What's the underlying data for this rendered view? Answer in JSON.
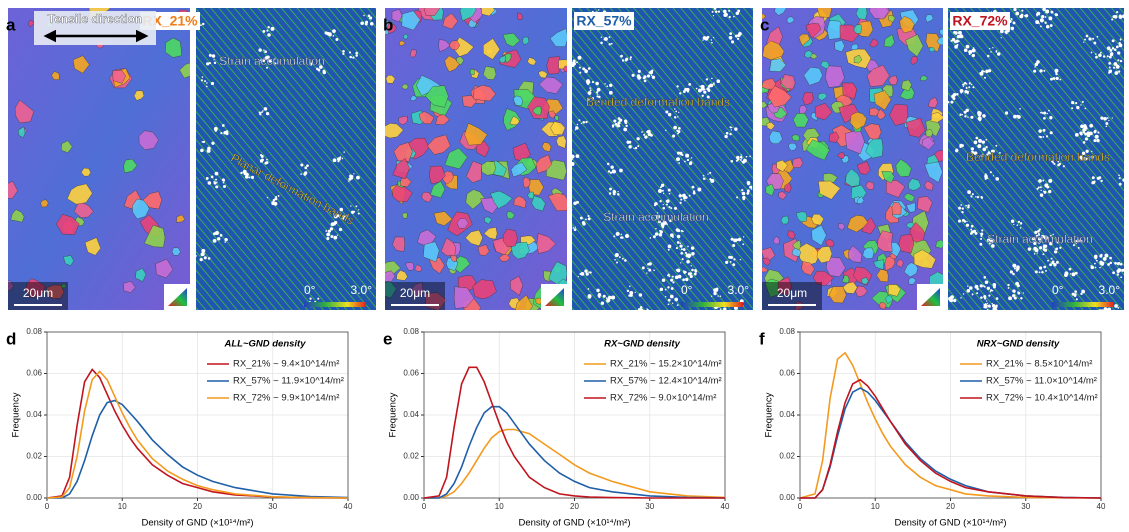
{
  "maps": [
    {
      "panel": "a",
      "label": "RX_21%",
      "label_color": "#f07d1a",
      "direction": "Tensile direction",
      "annotations": [
        "Strain accumulation",
        "Planar deformation bands"
      ],
      "scale_bar": "20μm",
      "colorbar_min": "0°",
      "colorbar_max": "3.0°"
    },
    {
      "panel": "b",
      "label": "RX_57%",
      "label_color": "#1f5fa8",
      "annotations": [
        "Bended deformation bands",
        "Strain accumulation"
      ],
      "scale_bar": "20μm",
      "colorbar_min": "0°",
      "colorbar_max": "3.0°"
    },
    {
      "panel": "c",
      "label": "RX_72%",
      "label_color": "#c0141e",
      "annotations": [
        "Bended deformation bands",
        "Strain accumulation"
      ],
      "scale_bar": "20μm",
      "colorbar_min": "0°",
      "colorbar_max": "3.0°"
    }
  ],
  "chart_data": [
    {
      "type": "line",
      "panel": "d",
      "title": "ALL~GND density",
      "xlabel": "Density of GND (×10¹⁴/m²)",
      "ylabel": "Frequency",
      "x": [
        0,
        2,
        3,
        4,
        5,
        6,
        7,
        8,
        9,
        10,
        11,
        12,
        14,
        16,
        18,
        20,
        22,
        25,
        30,
        35,
        40
      ],
      "xlim": [
        0,
        40
      ],
      "xticks": [
        0,
        10,
        20,
        30,
        40
      ],
      "ylim": [
        0,
        0.08
      ],
      "yticks": [
        {
          "value": 0,
          "label": "0.00"
        },
        0.02,
        0.04,
        0.06,
        0.08
      ],
      "grid": true,
      "legend": "upper right",
      "series": [
        {
          "name": "RX_21% ~ 9.4×10^14/m²",
          "color": "#c0141e",
          "values": [
            0,
            0.001,
            0.01,
            0.035,
            0.056,
            0.062,
            0.058,
            0.05,
            0.042,
            0.035,
            0.029,
            0.024,
            0.016,
            0.011,
            0.007,
            0.005,
            0.003,
            0.0015,
            0.0005,
            0.0001,
            0
          ]
        },
        {
          "name": "RX_57% ~ 11.9×10^14/m²",
          "color": "#1f5fa8",
          "values": [
            0,
            0,
            0.002,
            0.008,
            0.018,
            0.03,
            0.04,
            0.046,
            0.047,
            0.045,
            0.041,
            0.037,
            0.028,
            0.021,
            0.015,
            0.011,
            0.008,
            0.005,
            0.002,
            0.0007,
            0.0002
          ]
        },
        {
          "name": "RX_72% ~ 9.9×10^14/m²",
          "color": "#f39a1e",
          "values": [
            0,
            0.0005,
            0.005,
            0.02,
            0.042,
            0.057,
            0.061,
            0.057,
            0.049,
            0.041,
            0.034,
            0.028,
            0.019,
            0.013,
            0.009,
            0.006,
            0.004,
            0.002,
            0.0006,
            0.0002,
            0
          ]
        }
      ]
    },
    {
      "type": "line",
      "panel": "e",
      "title": "RX~GND density",
      "xlabel": "Density of GND (×10¹⁴/m²)",
      "ylabel": "Frequency",
      "x": [
        0,
        2,
        3,
        4,
        5,
        6,
        7,
        8,
        9,
        10,
        11,
        12,
        14,
        16,
        18,
        20,
        22,
        25,
        30,
        35,
        40
      ],
      "xlim": [
        0,
        40
      ],
      "xticks": [
        0,
        10,
        20,
        30,
        40
      ],
      "ylim": [
        0,
        0.08
      ],
      "yticks": [
        {
          "value": 0,
          "label": "0.00"
        },
        0.02,
        0.04,
        0.06,
        0.08
      ],
      "grid": true,
      "legend": "upper right",
      "series": [
        {
          "name": "RX_21% ~ 15.2×10^14/m²",
          "color": "#f39a1e",
          "values": [
            0,
            0,
            0.001,
            0.003,
            0.007,
            0.012,
            0.018,
            0.024,
            0.029,
            0.032,
            0.033,
            0.033,
            0.031,
            0.026,
            0.021,
            0.016,
            0.012,
            0.008,
            0.003,
            0.001,
            0.0003
          ]
        },
        {
          "name": "RX_57% ~ 12.4×10^14/m²",
          "color": "#1f5fa8",
          "values": [
            0,
            0,
            0.002,
            0.007,
            0.015,
            0.025,
            0.034,
            0.041,
            0.044,
            0.044,
            0.041,
            0.036,
            0.026,
            0.018,
            0.012,
            0.008,
            0.005,
            0.003,
            0.001,
            0.0003,
            0
          ]
        },
        {
          "name": "RX_72% ~ 9.0×10^14/m²",
          "color": "#c0141e",
          "values": [
            0,
            0.001,
            0.01,
            0.034,
            0.055,
            0.063,
            0.063,
            0.056,
            0.046,
            0.036,
            0.027,
            0.02,
            0.01,
            0.005,
            0.002,
            0.001,
            0.0005,
            0.0002,
            0,
            0,
            0
          ]
        }
      ]
    },
    {
      "type": "line",
      "panel": "f",
      "title": "NRX~GND density",
      "xlabel": "Density of GND (×10¹⁴/m²)",
      "ylabel": "Frequency",
      "x": [
        0,
        2,
        3,
        4,
        5,
        6,
        7,
        8,
        9,
        10,
        11,
        12,
        14,
        16,
        18,
        20,
        22,
        25,
        30,
        35,
        40
      ],
      "xlim": [
        0,
        40
      ],
      "xticks": [
        0,
        10,
        20,
        30,
        40
      ],
      "ylim": [
        0,
        0.08
      ],
      "yticks": [
        {
          "value": 0,
          "label": "0.00"
        },
        0.02,
        0.04,
        0.06,
        0.08
      ],
      "grid": true,
      "legend": "upper right",
      "series": [
        {
          "name": "RX_21% ~ 8.5×10^14/m²",
          "color": "#f39a1e",
          "values": [
            0,
            0.002,
            0.018,
            0.048,
            0.067,
            0.07,
            0.064,
            0.055,
            0.046,
            0.038,
            0.031,
            0.025,
            0.016,
            0.01,
            0.006,
            0.004,
            0.002,
            0.001,
            0.0003,
            0.0001,
            0
          ]
        },
        {
          "name": "RX_57% ~ 11.0×10^14/m²",
          "color": "#1f5fa8",
          "values": [
            0,
            0,
            0.004,
            0.015,
            0.03,
            0.043,
            0.051,
            0.053,
            0.051,
            0.047,
            0.042,
            0.037,
            0.027,
            0.019,
            0.013,
            0.009,
            0.006,
            0.003,
            0.001,
            0.0003,
            0
          ]
        },
        {
          "name": "RX_72% ~ 10.4×10^14/m²",
          "color": "#c0141e",
          "values": [
            0,
            0,
            0.004,
            0.016,
            0.032,
            0.046,
            0.055,
            0.057,
            0.054,
            0.049,
            0.043,
            0.037,
            0.026,
            0.018,
            0.012,
            0.008,
            0.005,
            0.003,
            0.001,
            0.0002,
            0
          ]
        }
      ]
    }
  ]
}
